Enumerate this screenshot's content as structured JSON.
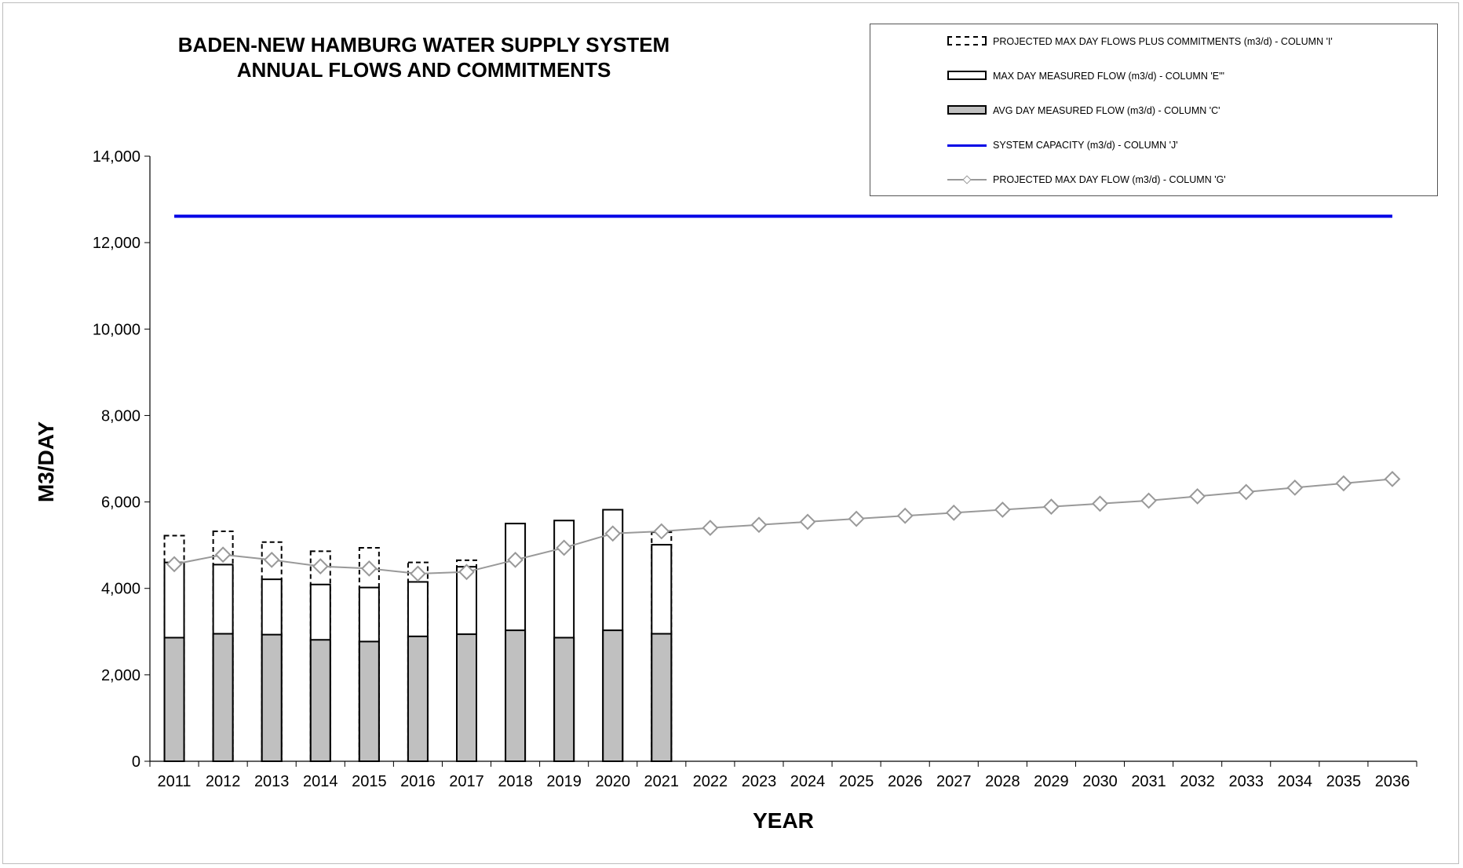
{
  "title_line1": "BADEN-NEW HAMBURG WATER SUPPLY SYSTEM",
  "title_line2": "ANNUAL FLOWS AND COMMITMENTS",
  "legend": [
    "PROJECTED MAX DAY FLOWS PLUS COMMITMENTS (m3/d) - COLUMN 'I'",
    "MAX DAY MEASURED FLOW (m3/d) - COLUMN 'E'\"",
    "AVG DAY MEASURED FLOW (m3/d) - COLUMN 'C'",
    "SYSTEM CAPACITY (m3/d) - COLUMN 'J'",
    "PROJECTED MAX DAY FLOW (m3/d) - COLUMN 'G'"
  ],
  "colors": {
    "capacity": "#0000e6",
    "projected": "#999999",
    "avg_fill": "#c0c0c0",
    "bar_stroke": "#000000"
  },
  "chart_data": {
    "type": "bar",
    "xlabel": "YEAR",
    "ylabel": "M3/DAY",
    "ylim": [
      0,
      14000
    ],
    "yticks": [
      0,
      2000,
      4000,
      6000,
      8000,
      10000,
      12000,
      14000
    ],
    "ytick_labels": [
      "0",
      "2,000",
      "4,000",
      "6,000",
      "8,000",
      "10,000",
      "12,000",
      "14,000"
    ],
    "legend_position": "top-right",
    "grid": false,
    "categories": [
      "2011",
      "2012",
      "2013",
      "2014",
      "2015",
      "2016",
      "2017",
      "2018",
      "2019",
      "2020",
      "2021",
      "2022",
      "2023",
      "2024",
      "2025",
      "2026",
      "2027",
      "2028",
      "2029",
      "2030",
      "2031",
      "2032",
      "2033",
      "2034",
      "2035",
      "2036"
    ],
    "series": [
      {
        "name": "PROJECTED MAX DAY FLOWS PLUS COMMITMENTS (m3/d) - COLUMN 'I'",
        "type": "bar-dashed",
        "values": [
          5220,
          5320,
          5070,
          4860,
          4940,
          4600,
          4650,
          null,
          null,
          null,
          5300,
          null,
          null,
          null,
          null,
          null,
          null,
          null,
          null,
          null,
          null,
          null,
          null,
          null,
          null,
          null
        ]
      },
      {
        "name": "MAX DAY MEASURED FLOW (m3/d) - COLUMN 'E'\"",
        "type": "bar",
        "values": [
          4600,
          4550,
          4210,
          4090,
          4020,
          4150,
          4500,
          5500,
          5570,
          5820,
          5010,
          null,
          null,
          null,
          null,
          null,
          null,
          null,
          null,
          null,
          null,
          null,
          null,
          null,
          null,
          null
        ]
      },
      {
        "name": "AVG DAY MEASURED FLOW (m3/d) - COLUMN 'C'",
        "type": "bar",
        "values": [
          2860,
          2950,
          2930,
          2810,
          2770,
          2890,
          2940,
          3030,
          2860,
          3030,
          2950,
          null,
          null,
          null,
          null,
          null,
          null,
          null,
          null,
          null,
          null,
          null,
          null,
          null,
          null,
          null
        ]
      },
      {
        "name": "SYSTEM CAPACITY (m3/d) - COLUMN 'J'",
        "type": "line",
        "values": [
          12610,
          12610,
          12610,
          12610,
          12610,
          12610,
          12610,
          12610,
          12610,
          12610,
          12610,
          12610,
          12610,
          12610,
          12610,
          12610,
          12610,
          12610,
          12610,
          12610,
          12610,
          12610,
          12610,
          12610,
          12610,
          12610
        ]
      },
      {
        "name": "PROJECTED MAX DAY FLOW (m3/d) - COLUMN 'G'",
        "type": "line-marker",
        "values": [
          4560,
          4780,
          4660,
          4510,
          4460,
          4340,
          4380,
          4660,
          4940,
          5270,
          5320,
          5400,
          5470,
          5540,
          5610,
          5680,
          5750,
          5820,
          5890,
          5960,
          6030,
          6130,
          6230,
          6330,
          6430,
          6530
        ]
      }
    ]
  }
}
